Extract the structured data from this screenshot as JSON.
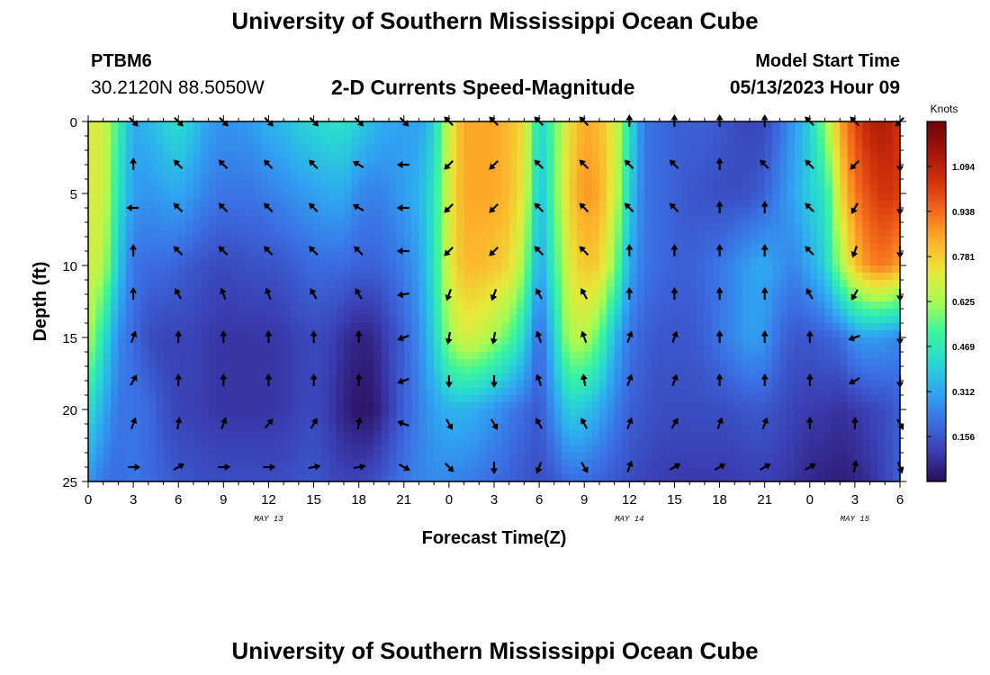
{
  "header": {
    "title": "University of Southern Mississippi Ocean Cube",
    "station": "PTBM6",
    "coordinates": "30.2120N  88.5050W",
    "subtitle": "2-D Currents Speed-Magnitude",
    "model_start_label": "Model Start Time",
    "model_start_value": "05/13/2023 Hour 09"
  },
  "footer": {
    "title": "University of Southern Mississippi Ocean Cube"
  },
  "chart_data": {
    "type": "heatmap",
    "title": "2-D Currents Speed-Magnitude",
    "xlabel": "Forecast Time(Z)",
    "ylabel": "Depth (ft)",
    "x_tick_labels": [
      "0",
      "3",
      "6",
      "9",
      "12",
      "15",
      "18",
      "21",
      "0",
      "3",
      "6",
      "9",
      "12",
      "15",
      "18",
      "21",
      "0",
      "3",
      "6"
    ],
    "x_range_hours": [
      0,
      54
    ],
    "y_ticks": [
      0,
      5,
      10,
      15,
      20,
      25
    ],
    "ylim": [
      0,
      25
    ],
    "y_inverted": true,
    "date_labels": [
      {
        "text": "MAY 13",
        "hour": 12
      },
      {
        "text": "MAY 14",
        "hour": 36
      },
      {
        "text": "MAY 15",
        "hour": 51
      }
    ],
    "colorbar": {
      "unit": "Knots",
      "ticks": [
        0.156,
        0.312,
        0.469,
        0.625,
        0.781,
        0.938,
        1.094
      ],
      "range": [
        0,
        1.25
      ],
      "colors": [
        "#2a0a55",
        "#3a3cb0",
        "#3b6fe3",
        "#2fa6f2",
        "#28d8d2",
        "#3df59b",
        "#a6fb52",
        "#e7e93a",
        "#fdb32b",
        "#f56c1c",
        "#d2340c",
        "#a3130a",
        "#6e0708"
      ]
    },
    "speed_grid": {
      "depths_ft": [
        0,
        5,
        10,
        15,
        20,
        25
      ],
      "hours": [
        0,
        1,
        2,
        3,
        4,
        5,
        6,
        7,
        8,
        9,
        10,
        11,
        12,
        13,
        14,
        15,
        16,
        17,
        18,
        19,
        20,
        21,
        22,
        23,
        24,
        25,
        26,
        27,
        28,
        29,
        30,
        31,
        32,
        33,
        34,
        35,
        36,
        37,
        38,
        39,
        40,
        41,
        42,
        43,
        44,
        45,
        46,
        47,
        48,
        49,
        50,
        51,
        52,
        53,
        54
      ],
      "speed_knots": [
        [
          0.7,
          0.7,
          0.5,
          0.32,
          0.35,
          0.4,
          0.44,
          0.38,
          0.3,
          0.28,
          0.28,
          0.3,
          0.34,
          0.36,
          0.4,
          0.42,
          0.44,
          0.45,
          0.4,
          0.35,
          0.32,
          0.3,
          0.3,
          0.4,
          0.7,
          0.85,
          0.85,
          0.85,
          0.82,
          0.75,
          0.4,
          0.55,
          0.75,
          0.85,
          0.82,
          0.72,
          0.45,
          0.22,
          0.2,
          0.18,
          0.18,
          0.18,
          0.16,
          0.14,
          0.12,
          0.13,
          0.2,
          0.3,
          0.4,
          0.6,
          0.85,
          1.0,
          1.1,
          1.12,
          1.05
        ],
        [
          0.7,
          0.7,
          0.45,
          0.3,
          0.28,
          0.3,
          0.32,
          0.28,
          0.24,
          0.22,
          0.22,
          0.22,
          0.24,
          0.26,
          0.28,
          0.3,
          0.32,
          0.32,
          0.26,
          0.24,
          0.26,
          0.3,
          0.34,
          0.45,
          0.72,
          0.85,
          0.85,
          0.85,
          0.82,
          0.72,
          0.35,
          0.55,
          0.78,
          0.88,
          0.85,
          0.7,
          0.4,
          0.22,
          0.2,
          0.18,
          0.16,
          0.15,
          0.14,
          0.14,
          0.15,
          0.18,
          0.25,
          0.32,
          0.4,
          0.45,
          0.75,
          0.92,
          1.0,
          1.05,
          1.02
        ],
        [
          0.7,
          0.65,
          0.38,
          0.22,
          0.2,
          0.2,
          0.18,
          0.16,
          0.14,
          0.13,
          0.14,
          0.15,
          0.15,
          0.16,
          0.18,
          0.2,
          0.2,
          0.2,
          0.18,
          0.18,
          0.2,
          0.24,
          0.3,
          0.45,
          0.72,
          0.82,
          0.82,
          0.8,
          0.76,
          0.62,
          0.3,
          0.5,
          0.72,
          0.8,
          0.78,
          0.6,
          0.32,
          0.22,
          0.2,
          0.18,
          0.18,
          0.2,
          0.22,
          0.26,
          0.3,
          0.32,
          0.28,
          0.25,
          0.32,
          0.4,
          0.62,
          0.8,
          0.9,
          0.92,
          0.85
        ],
        [
          0.65,
          0.45,
          0.26,
          0.2,
          0.14,
          0.12,
          0.12,
          0.12,
          0.1,
          0.09,
          0.09,
          0.09,
          0.09,
          0.1,
          0.12,
          0.13,
          0.12,
          0.08,
          0.05,
          0.06,
          0.12,
          0.18,
          0.26,
          0.4,
          0.62,
          0.7,
          0.68,
          0.62,
          0.55,
          0.42,
          0.18,
          0.4,
          0.65,
          0.65,
          0.55,
          0.35,
          0.22,
          0.18,
          0.16,
          0.16,
          0.16,
          0.18,
          0.22,
          0.26,
          0.3,
          0.28,
          0.2,
          0.16,
          0.16,
          0.18,
          0.2,
          0.28,
          0.3,
          0.28,
          0.25
        ],
        [
          0.45,
          0.32,
          0.22,
          0.22,
          0.2,
          0.15,
          0.12,
          0.11,
          0.1,
          0.09,
          0.09,
          0.09,
          0.09,
          0.1,
          0.12,
          0.13,
          0.1,
          0.05,
          0.02,
          0.03,
          0.1,
          0.18,
          0.24,
          0.3,
          0.34,
          0.34,
          0.32,
          0.28,
          0.24,
          0.2,
          0.16,
          0.28,
          0.4,
          0.38,
          0.32,
          0.24,
          0.18,
          0.16,
          0.14,
          0.14,
          0.14,
          0.14,
          0.14,
          0.15,
          0.16,
          0.16,
          0.14,
          0.12,
          0.1,
          0.1,
          0.08,
          0.1,
          0.12,
          0.14,
          0.18
        ],
        [
          0.28,
          0.22,
          0.2,
          0.22,
          0.2,
          0.18,
          0.16,
          0.15,
          0.14,
          0.14,
          0.14,
          0.14,
          0.14,
          0.14,
          0.15,
          0.16,
          0.14,
          0.12,
          0.12,
          0.14,
          0.18,
          0.22,
          0.25,
          0.26,
          0.25,
          0.24,
          0.22,
          0.2,
          0.18,
          0.16,
          0.14,
          0.16,
          0.2,
          0.2,
          0.18,
          0.16,
          0.14,
          0.12,
          0.11,
          0.1,
          0.1,
          0.1,
          0.1,
          0.1,
          0.11,
          0.11,
          0.1,
          0.08,
          0.06,
          0.05,
          0.04,
          0.05,
          0.08,
          0.12,
          0.18
        ]
      ]
    },
    "arrows": {
      "hours": [
        3,
        6,
        9,
        12,
        15,
        18,
        21,
        24,
        27,
        30,
        33,
        36,
        39,
        42,
        45,
        48,
        51,
        54
      ],
      "depths_ft": [
        0,
        3,
        6,
        9,
        12,
        15,
        18,
        21,
        24
      ],
      "direction_deg": [
        [
          135,
          135,
          135,
          135,
          135,
          135,
          135,
          315,
          315,
          315,
          315,
          0,
          0,
          0,
          0,
          315,
          315,
          225
        ],
        [
          0,
          315,
          315,
          315,
          315,
          300,
          270,
          225,
          225,
          315,
          315,
          315,
          315,
          0,
          315,
          315,
          225,
          180
        ],
        [
          270,
          315,
          315,
          315,
          315,
          300,
          270,
          225,
          225,
          315,
          315,
          315,
          315,
          0,
          0,
          315,
          210,
          180
        ],
        [
          0,
          315,
          315,
          315,
          315,
          315,
          270,
          225,
          225,
          315,
          315,
          0,
          0,
          0,
          0,
          315,
          200,
          180
        ],
        [
          0,
          330,
          340,
          340,
          330,
          330,
          260,
          200,
          200,
          330,
          330,
          0,
          0,
          0,
          0,
          330,
          210,
          180
        ],
        [
          20,
          0,
          0,
          0,
          0,
          0,
          250,
          190,
          190,
          340,
          340,
          20,
          20,
          0,
          0,
          0,
          250,
          180
        ],
        [
          30,
          0,
          0,
          0,
          0,
          0,
          250,
          180,
          180,
          340,
          350,
          20,
          20,
          0,
          0,
          0,
          240,
          180
        ],
        [
          20,
          10,
          20,
          40,
          30,
          10,
          290,
          150,
          150,
          330,
          330,
          20,
          30,
          20,
          20,
          0,
          0,
          150
        ],
        [
          90,
          60,
          90,
          90,
          80,
          80,
          120,
          135,
          180,
          200,
          150,
          20,
          60,
          60,
          60,
          60,
          10,
          160
        ]
      ]
    }
  }
}
